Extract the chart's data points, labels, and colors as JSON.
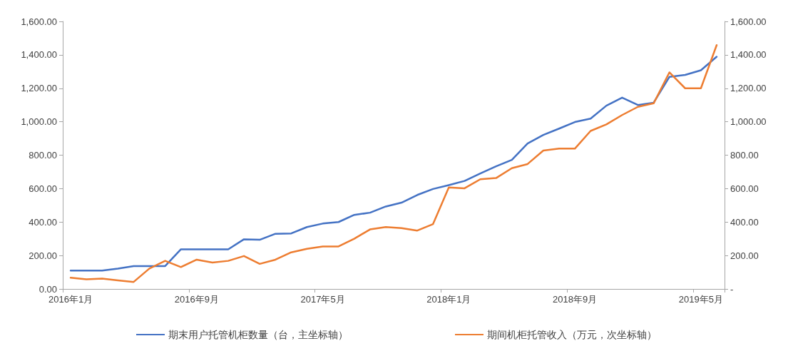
{
  "chart_data": {
    "type": "line",
    "categories": [
      "2016年1月",
      null,
      null,
      null,
      null,
      null,
      null,
      null,
      "2016年9月",
      null,
      null,
      null,
      null,
      null,
      null,
      null,
      "2017年5月",
      null,
      null,
      null,
      null,
      null,
      null,
      null,
      "2018年1月",
      null,
      null,
      null,
      null,
      null,
      null,
      null,
      "2018年9月",
      null,
      null,
      null,
      null,
      null,
      null,
      null,
      "2019年5月",
      null
    ],
    "series": [
      {
        "name": "期末用户托管机柜数量（台，主坐标轴）",
        "color": "#4472c4",
        "values": [
          110,
          110,
          110,
          122,
          137,
          137,
          137,
          237,
          237,
          237,
          237,
          297,
          294,
          330,
          332,
          370,
          391,
          400,
          443,
          456,
          493,
          516,
          562,
          598,
          621,
          646,
          691,
          733,
          772,
          870,
          921,
          959,
          998,
          1019,
          1096,
          1144,
          1100,
          1114,
          1268,
          1280,
          1308,
          1389
        ]
      },
      {
        "name": "期间机柜托管收入（万元，次坐标轴）",
        "color": "#ed7d31",
        "axis": "y2",
        "values": [
          67,
          58,
          62,
          51,
          42,
          122,
          168,
          131,
          175,
          158,
          168,
          197,
          150,
          175,
          219,
          240,
          254,
          254,
          300,
          356,
          370,
          364,
          349,
          388,
          607,
          602,
          656,
          663,
          722,
          747,
          828,
          839,
          839,
          945,
          984,
          1040,
          1089,
          1110,
          1295,
          1200,
          1200,
          1458
        ]
      }
    ],
    "ylim": [
      0,
      1600
    ],
    "yticks": [
      {
        "value": 0,
        "label": "0.00"
      },
      {
        "value": 200,
        "label": "200.00"
      },
      {
        "value": 400,
        "label": "400.00"
      },
      {
        "value": 600,
        "label": "600.00"
      },
      {
        "value": 800,
        "label": "800.00"
      },
      {
        "value": 1000,
        "label": "1,000.00"
      },
      {
        "value": 1200,
        "label": "1,200.00"
      },
      {
        "value": 1400,
        "label": "1,400.00"
      },
      {
        "value": 1600,
        "label": "1,600.00"
      }
    ],
    "y2lim": [
      0,
      1600
    ],
    "y2ticks": [
      {
        "value": 0,
        "label": "-"
      },
      {
        "value": 200,
        "label": "200.00"
      },
      {
        "value": 400,
        "label": "400.00"
      },
      {
        "value": 600,
        "label": "600.00"
      },
      {
        "value": 800,
        "label": "800.00"
      },
      {
        "value": 1000,
        "label": "1,000.00"
      },
      {
        "value": 1200,
        "label": "1,200.00"
      },
      {
        "value": 1400,
        "label": "1,400.00"
      },
      {
        "value": 1600,
        "label": "1,600.00"
      }
    ],
    "grid": false,
    "legend": "bottom",
    "marker": "none",
    "line_style": "solid"
  }
}
